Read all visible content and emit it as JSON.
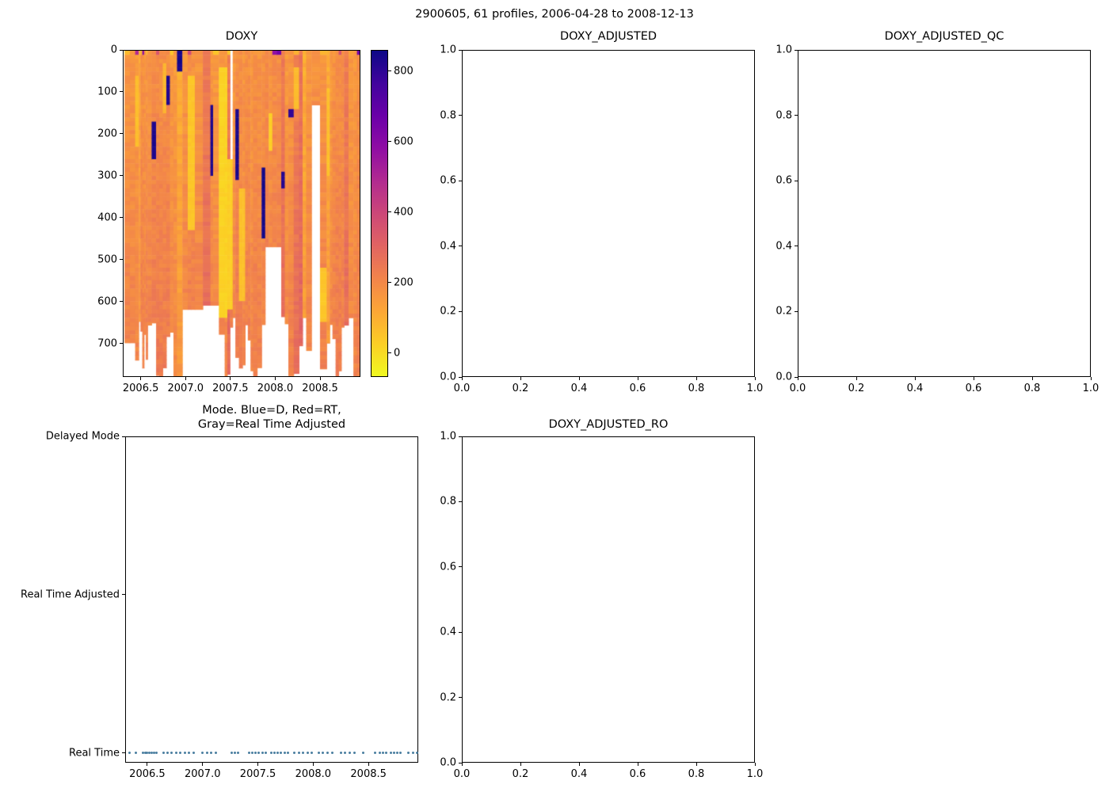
{
  "suptitle": "2900605, 61 profiles, 2006-04-28 to 2008-12-13",
  "colors": {
    "background": "#ffffff",
    "text": "#000000",
    "spine": "#000000",
    "missing": "#ffffff"
  },
  "chart_data": [
    {
      "type": "heatmap",
      "title": "DOXY",
      "xlabel": "",
      "ylabel": "",
      "xlim": [
        2006.3,
        2008.95
      ],
      "ylim": [
        0,
        780
      ],
      "y_down": true,
      "xticks": [
        2006.5,
        2007.0,
        2007.5,
        2008.0,
        2008.5
      ],
      "xtick_labels": [
        "2006.5",
        "2007.0",
        "2007.5",
        "2008.0",
        "2008.5"
      ],
      "yticks": [
        0,
        100,
        200,
        300,
        400,
        500,
        600,
        700
      ],
      "ytick_labels": [
        "0",
        "100",
        "200",
        "300",
        "400",
        "500",
        "600",
        "700"
      ],
      "colormap": "plasma_r",
      "colormap_stops": [
        "#0d0887",
        "#41049d",
        "#6a00a8",
        "#8f0da4",
        "#b12a90",
        "#cc4778",
        "#e16462",
        "#f2844b",
        "#fca636",
        "#fcce25",
        "#f0f921"
      ],
      "colorbar": {
        "vmin": -68,
        "vmax": 860,
        "ticks": [
          0,
          200,
          400,
          600,
          800
        ],
        "tick_labels": [
          "0",
          "200",
          "400",
          "600",
          "800"
        ]
      },
      "typical_value": 200,
      "regions": [
        {
          "x0": 2007.41,
          "x1": 2007.47,
          "d0": 40,
          "d1": 640,
          "v": 15
        },
        {
          "x0": 2007.47,
          "x1": 2007.53,
          "d0": 260,
          "d1": 620,
          "v": 25
        },
        {
          "x0": 2007.035,
          "x1": 2007.095,
          "d0": 60,
          "d1": 430,
          "v": 45
        },
        {
          "x0": 2007.945,
          "x1": 2007.965,
          "d0": 150,
          "d1": 235,
          "v": 25
        },
        {
          "x0": 2008.585,
          "x1": 2008.615,
          "d0": 90,
          "d1": 300,
          "v": 55
        },
        {
          "x0": 2008.545,
          "x1": 2008.575,
          "d0": 520,
          "d1": 650,
          "v": 45
        },
        {
          "x0": 2006.455,
          "x1": 2006.475,
          "d0": 60,
          "d1": 230,
          "v": 60
        },
        {
          "x0": 2007.61,
          "x1": 2007.665,
          "d0": 330,
          "d1": 600,
          "v": 55
        },
        {
          "x0": 2008.245,
          "x1": 2008.265,
          "d0": 40,
          "d1": 140,
          "v": 70
        },
        {
          "x0": 2006.75,
          "x1": 2006.77,
          "d0": 30,
          "d1": 150,
          "v": 75
        },
        {
          "x0": 2006.635,
          "x1": 2006.665,
          "d0": 165,
          "d1": 260,
          "v": 835
        },
        {
          "x0": 2006.795,
          "x1": 2006.815,
          "d0": 55,
          "d1": 125,
          "v": 820
        },
        {
          "x0": 2006.915,
          "x1": 2006.935,
          "d0": 0,
          "d1": 45,
          "v": 845
        },
        {
          "x0": 2007.285,
          "x1": 2007.305,
          "d0": 125,
          "d1": 300,
          "v": 835
        },
        {
          "x0": 2007.555,
          "x1": 2007.585,
          "d0": 140,
          "d1": 305,
          "v": 840
        },
        {
          "x0": 2007.855,
          "x1": 2007.885,
          "d0": 275,
          "d1": 445,
          "v": 845
        },
        {
          "x0": 2008.075,
          "x1": 2008.1,
          "d0": 290,
          "d1": 325,
          "v": 820
        },
        {
          "x0": 2008.155,
          "x1": 2008.18,
          "d0": 135,
          "d1": 160,
          "v": 800
        },
        {
          "x0": 2007.89,
          "x1": 2008.07,
          "d0": 465,
          "d1": 790,
          "v": null
        },
        {
          "x0": 2006.97,
          "x1": 2007.14,
          "d0": 615,
          "d1": 790,
          "v": null
        },
        {
          "x0": 2007.25,
          "x1": 2007.35,
          "d0": 605,
          "d1": 790,
          "v": null
        },
        {
          "x0": 2008.42,
          "x1": 2008.5,
          "d0": 130,
          "d1": 790,
          "v": null
        },
        {
          "x0": 2006.31,
          "x1": 2006.43,
          "d0": 700,
          "d1": 790,
          "v": null
        },
        {
          "x0": 2007.5,
          "x1": 2007.53,
          "d0": 0,
          "d1": 260,
          "v": null
        },
        {
          "x0": 2006.53,
          "x1": 2006.55,
          "d0": 680,
          "d1": 790,
          "v": null
        },
        {
          "x0": 2008.835,
          "x1": 2008.875,
          "d0": 640,
          "d1": 790,
          "v": null
        }
      ]
    },
    {
      "type": "empty",
      "title": "DOXY_ADJUSTED",
      "xlim": [
        0,
        1
      ],
      "ylim": [
        0,
        1
      ],
      "xticks": [
        0,
        0.2,
        0.4,
        0.6,
        0.8,
        1.0
      ],
      "xtick_labels": [
        "0.0",
        "0.2",
        "0.4",
        "0.6",
        "0.8",
        "1.0"
      ],
      "yticks": [
        0,
        0.2,
        0.4,
        0.6,
        0.8,
        1.0
      ],
      "ytick_labels": [
        "0.0",
        "0.2",
        "0.4",
        "0.6",
        "0.8",
        "1.0"
      ]
    },
    {
      "type": "empty",
      "title": "DOXY_ADJUSTED_QC",
      "xlim": [
        0,
        1
      ],
      "ylim": [
        0,
        1
      ],
      "xticks": [
        0,
        0.2,
        0.4,
        0.6,
        0.8,
        1.0
      ],
      "xtick_labels": [
        "0.0",
        "0.2",
        "0.4",
        "0.6",
        "0.8",
        "1.0"
      ],
      "yticks": [
        0,
        0.2,
        0.4,
        0.6,
        0.8,
        1.0
      ],
      "ytick_labels": [
        "0.0",
        "0.2",
        "0.4",
        "0.6",
        "0.8",
        "1.0"
      ]
    },
    {
      "type": "scatter",
      "title": "Mode. Blue=D, Red=RT,\nGray=Real Time Adjusted",
      "xlim": [
        2006.3,
        2008.95
      ],
      "ylim": [
        -0.0625,
        2.0
      ],
      "xticks": [
        2006.5,
        2007.0,
        2007.5,
        2008.0,
        2008.5
      ],
      "xtick_labels": [
        "2006.5",
        "2007.0",
        "2007.5",
        "2008.0",
        "2008.5"
      ],
      "yticks": [
        2,
        1,
        0
      ],
      "ytick_labels": [
        "Delayed Mode",
        "Real Time Adjusted",
        "Real Time"
      ],
      "marker_color": "#4a7fa0",
      "y_value": 0,
      "x": [
        2006.34,
        2006.4,
        2006.46,
        2006.48,
        2006.5,
        2006.52,
        2006.54,
        2006.56,
        2006.58,
        2006.65,
        2006.68,
        2006.72,
        2006.76,
        2006.8,
        2006.84,
        2006.88,
        2006.92,
        2007.0,
        2007.04,
        2007.08,
        2007.12,
        2007.26,
        2007.29,
        2007.32,
        2007.42,
        2007.45,
        2007.48,
        2007.51,
        2007.54,
        2007.57,
        2007.62,
        2007.65,
        2007.68,
        2007.71,
        2007.74,
        2007.77,
        2007.83,
        2007.87,
        2007.91,
        2007.95,
        2007.99,
        2008.05,
        2008.09,
        2008.13,
        2008.17,
        2008.25,
        2008.29,
        2008.33,
        2008.37,
        2008.45,
        2008.56,
        2008.6,
        2008.63,
        2008.66,
        2008.7,
        2008.73,
        2008.76,
        2008.79,
        2008.86,
        2008.9,
        2008.94
      ]
    },
    {
      "type": "empty",
      "title": "DOXY_ADJUSTED_RO",
      "xlim": [
        0,
        1
      ],
      "ylim": [
        0,
        1
      ],
      "xticks": [
        0,
        0.2,
        0.4,
        0.6,
        0.8,
        1.0
      ],
      "xtick_labels": [
        "0.0",
        "0.2",
        "0.4",
        "0.6",
        "0.8",
        "1.0"
      ],
      "yticks": [
        0,
        0.2,
        0.4,
        0.6,
        0.8,
        1.0
      ],
      "ytick_labels": [
        "0.0",
        "0.2",
        "0.4",
        "0.6",
        "0.8",
        "1.0"
      ]
    }
  ]
}
